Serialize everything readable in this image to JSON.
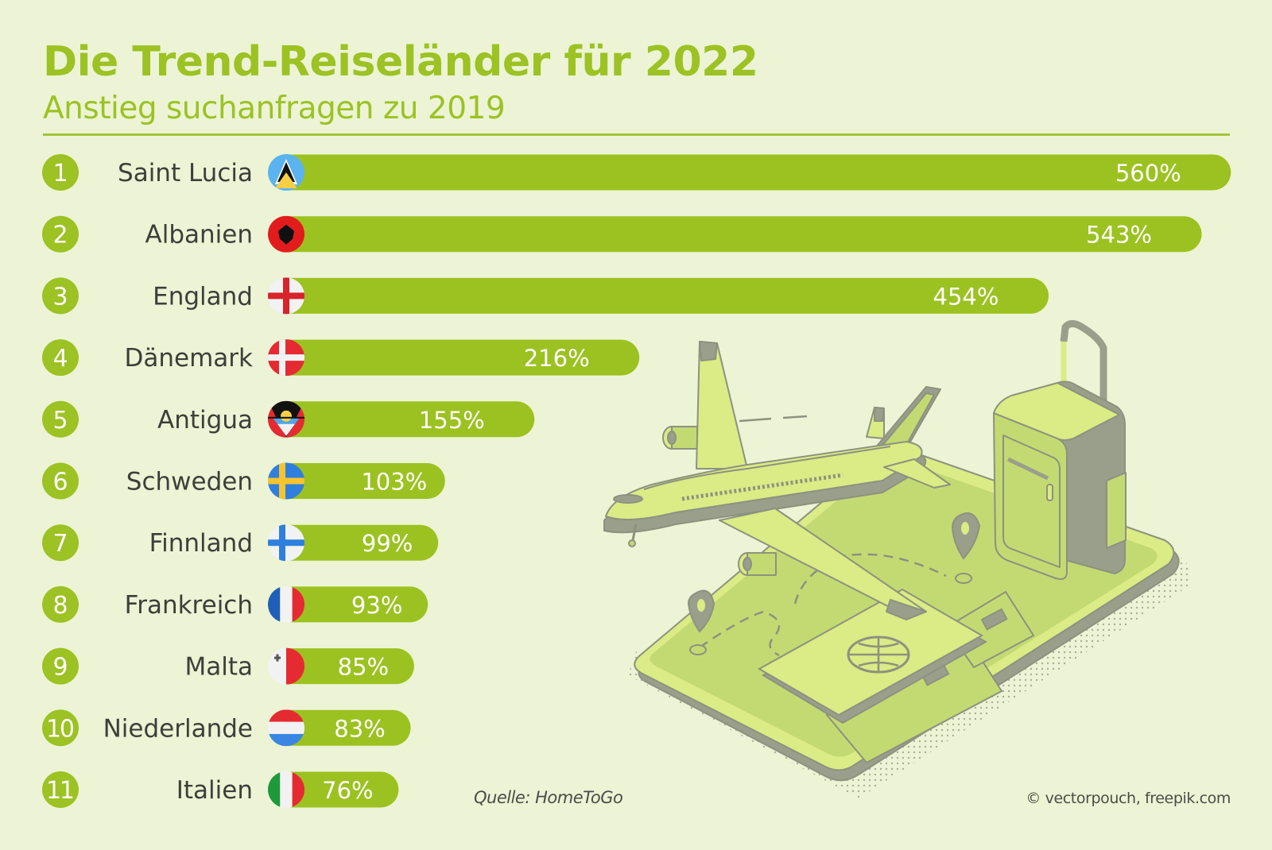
{
  "header": {
    "title": "Die Trend-Reiseländer für 2022",
    "subtitle": "Anstieg suchanfragen zu 2019"
  },
  "footer": {
    "source": "Quelle: HomeToGo",
    "credit": "© vectorpouch, freepik.com"
  },
  "colors": {
    "background": "#ecf4d5",
    "accent": "#9cc223",
    "bar": "#9bc220",
    "label_text": "#3c3f3a",
    "illustration_light": "#dbeb85",
    "illustration_mid": "#c3da73",
    "illustration_dark": "#9a9f8c"
  },
  "illustration": {
    "description": "Isometric travel illustration: airplane, suitcase, smartphone with map pins, passport and tickets"
  },
  "chart_data": {
    "type": "bar",
    "orientation": "horizontal",
    "title": "Die Trend-Reiseländer für 2022",
    "subtitle": "Anstieg suchanfragen zu 2019",
    "xlabel": "",
    "ylabel": "",
    "unit": "%",
    "xlim": [
      0,
      560
    ],
    "grid": false,
    "legend": "none",
    "categories": [
      "Saint Lucia",
      "Albanien",
      "England",
      "Dänemark",
      "Antigua",
      "Schweden",
      "Finnland",
      "Frankreich",
      "Malta",
      "Niederlande",
      "Italien"
    ],
    "ranks": [
      "1",
      "2",
      "3",
      "4",
      "5",
      "6",
      "7",
      "8",
      "9",
      "10",
      "11"
    ],
    "values": [
      560,
      543,
      454,
      216,
      155,
      103,
      99,
      93,
      85,
      83,
      76
    ],
    "value_labels": [
      "560%",
      "543%",
      "454%",
      "216%",
      "155%",
      "103%",
      "99%",
      "93%",
      "85%",
      "83%",
      "76%"
    ],
    "flags": [
      "saint-lucia",
      "albania",
      "england",
      "denmark",
      "antigua",
      "sweden",
      "finland",
      "france",
      "malta",
      "netherlands",
      "italy"
    ],
    "source": "Quelle: HomeToGo"
  }
}
